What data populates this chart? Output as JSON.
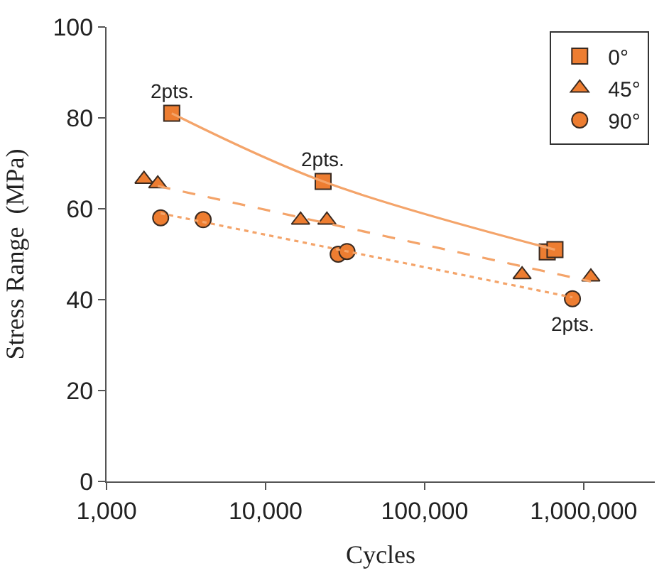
{
  "chart_data": {
    "type": "scatter",
    "xlabel": "Cycles",
    "ylabel": "Stress Range  (MPa)",
    "log": "x",
    "legend": "top right",
    "xlim": [
      1000,
      2800000
    ],
    "xticks": [
      {
        "value": 1000,
        "label": "1,000"
      },
      {
        "value": 10000,
        "label": "10,000"
      },
      {
        "value": 100000,
        "label": "100,000"
      },
      {
        "value": 1000000,
        "label": "1,000,000"
      }
    ],
    "ylim": [
      0,
      100
    ],
    "yticks": [
      0,
      20,
      40,
      60,
      80,
      100
    ],
    "series": [
      {
        "name": "0°",
        "type": "scatter",
        "marker": "square",
        "color": "#ed7d31",
        "x": [
          2570,
          23000,
          590000,
          660000
        ],
        "values": [
          81,
          66,
          50.5,
          51
        ]
      },
      {
        "name": "45°",
        "type": "scatter",
        "marker": "triangle",
        "color": "#ed7d31",
        "x": [
          1720,
          2100,
          16600,
          24300,
          410000,
          1110000
        ],
        "values": [
          66.5,
          65.5,
          57.5,
          57.5,
          45.5,
          45
        ]
      },
      {
        "name": "90°",
        "type": "scatter",
        "marker": "circle",
        "color": "#ed7d31",
        "x": [
          2190,
          4050,
          28600,
          32500,
          850000
        ],
        "values": [
          58,
          57.6,
          50,
          50.6,
          40.2
        ]
      },
      {
        "type": "line",
        "line_style": "solid",
        "color": "#f4a46a",
        "x": [
          2570,
          23000,
          660000
        ],
        "values": [
          81,
          66,
          51
        ]
      },
      {
        "type": "line",
        "line_style": "dashed",
        "color": "#f4a46a",
        "x": [
          2100,
          1110000
        ],
        "values": [
          65,
          44
        ]
      },
      {
        "type": "line",
        "line_style": "dotted",
        "color": "#f4a46a",
        "x": [
          2190,
          850000
        ],
        "values": [
          59,
          40.5
        ]
      }
    ],
    "annotations": [
      {
        "text": "2pts.",
        "x": 2570,
        "y": 81
      },
      {
        "text": "2pts.",
        "x": 23000,
        "y": 66
      },
      {
        "text": "2pts.",
        "x": 850000,
        "y": 40.2
      }
    ]
  }
}
